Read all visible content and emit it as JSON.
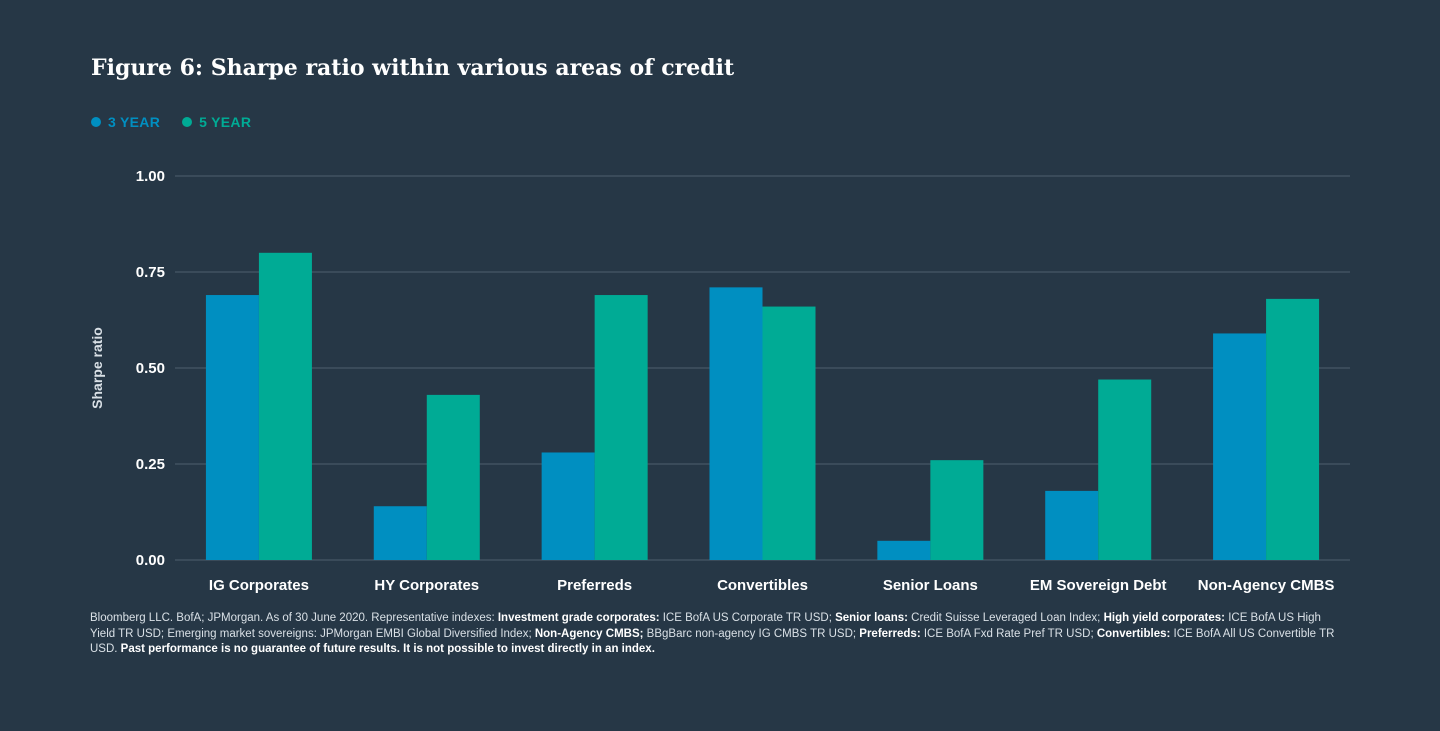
{
  "title": "Figure 6: Sharpe ratio within various areas of credit",
  "colors": {
    "background": "#263746",
    "three_year": "#008fc1",
    "five_year": "#00ab95",
    "grid": "#4d5f6e",
    "text": "#ffffff"
  },
  "chart_data": {
    "type": "bar",
    "ylabel": "Sharpe ratio",
    "xlabel": "",
    "ylim": [
      0,
      1
    ],
    "yticks": [
      "0.00",
      "0.25",
      "0.50",
      "0.75",
      "1.00"
    ],
    "grid": true,
    "legend_position": "top-left",
    "categories": [
      "IG Corporates",
      "HY Corporates",
      "Preferreds",
      "Convertibles",
      "Senior Loans",
      "EM Sovereign Debt",
      "Non-Agency CMBS"
    ],
    "series": [
      {
        "name": "3 YEAR",
        "color": "#008fc1",
        "values": [
          0.69,
          0.14,
          0.28,
          0.71,
          0.05,
          0.18,
          0.59
        ]
      },
      {
        "name": "5 YEAR",
        "color": "#00ab95",
        "values": [
          0.8,
          0.43,
          0.69,
          0.66,
          0.26,
          0.47,
          0.68
        ]
      }
    ]
  },
  "footnote": [
    {
      "text": "Bloomberg LLC. BofA; JPMorgan. As of 30 June 2020. Representative indexes: ",
      "bold": false
    },
    {
      "text": "Investment grade corporates:",
      "bold": true
    },
    {
      "text": " ICE BofA US Corporate TR USD; ",
      "bold": false
    },
    {
      "text": "Senior loans:",
      "bold": true
    },
    {
      "text": " Credit Suisse Leveraged Loan Index; ",
      "bold": false
    },
    {
      "text": "High yield corporates:",
      "bold": true
    },
    {
      "text": " ICE BofA US High Yield TR USD; Emerging market sovereigns: JPMorgan EMBI Global Diversified Index; ",
      "bold": false
    },
    {
      "text": "Non-Agency CMBS;",
      "bold": true
    },
    {
      "text": " BBgBarc non-agency IG CMBS TR USD; ",
      "bold": false
    },
    {
      "text": "Preferreds:",
      "bold": true
    },
    {
      "text": " ICE BofA Fxd Rate Pref TR USD; ",
      "bold": false
    },
    {
      "text": "Convertibles:",
      "bold": true
    },
    {
      "text": " ICE BofA All US Convertible TR USD. ",
      "bold": false
    },
    {
      "text": "Past performance is no guarantee of future results. It is not possible to invest directly in an index.",
      "bold": true
    }
  ]
}
